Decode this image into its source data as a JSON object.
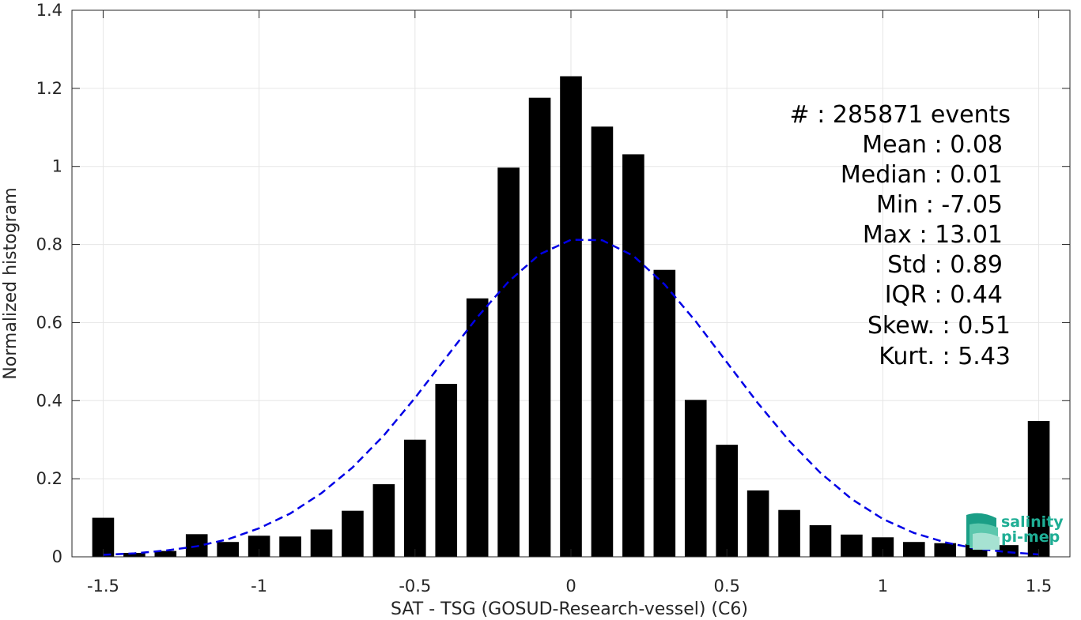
{
  "chart_data": {
    "type": "bar",
    "xlabel": "SAT - TSG (GOSUD-Research-vessel) (C6)",
    "ylabel": "Normalized histogram",
    "xlim": [
      -1.6,
      1.6
    ],
    "ylim": [
      0,
      1.4
    ],
    "xticks": [
      -1.5,
      -1,
      -0.5,
      0,
      0.5,
      1,
      1.5
    ],
    "xtick_labels": [
      "-1.5",
      "-1",
      "-0.5",
      "0",
      "0.5",
      "1",
      "1.5"
    ],
    "yticks": [
      0,
      0.2,
      0.4,
      0.6,
      0.8,
      1,
      1.2,
      1.4
    ],
    "ytick_labels": [
      "0",
      "0.2",
      "0.4",
      "0.6",
      "0.8",
      "1",
      "1.2",
      "1.4"
    ],
    "grid": true,
    "bar_color": "#000000",
    "bin_width": 0.1,
    "bins": {
      "centers": [
        -1.5,
        -1.4,
        -1.3,
        -1.2,
        -1.1,
        -1.0,
        -0.9,
        -0.8,
        -0.7,
        -0.6,
        -0.5,
        -0.4,
        -0.3,
        -0.2,
        -0.1,
        0.0,
        0.1,
        0.2,
        0.3,
        0.4,
        0.5,
        0.6,
        0.7,
        0.8,
        0.9,
        1.0,
        1.1,
        1.2,
        1.3,
        1.4,
        1.5
      ],
      "values": [
        0.1,
        0.01,
        0.015,
        0.058,
        0.038,
        0.054,
        0.052,
        0.07,
        0.118,
        0.186,
        0.3,
        0.443,
        0.662,
        0.997,
        1.176,
        1.231,
        1.102,
        1.031,
        0.735,
        0.402,
        0.287,
        0.17,
        0.12,
        0.081,
        0.057,
        0.05,
        0.038,
        0.035,
        0.033,
        0.03,
        0.348
      ]
    },
    "fit_curve": {
      "style": "dashed",
      "color": "#0000e6",
      "x": [
        -1.5,
        -1.4,
        -1.3,
        -1.2,
        -1.1,
        -1.0,
        -0.9,
        -0.8,
        -0.7,
        -0.6,
        -0.5,
        -0.4,
        -0.3,
        -0.2,
        -0.1,
        0.0,
        0.1,
        0.2,
        0.3,
        0.4,
        0.5,
        0.6,
        0.7,
        0.8,
        0.9,
        1.0,
        1.1,
        1.2,
        1.3,
        1.4,
        1.5
      ],
      "y": [
        0.005,
        0.009,
        0.016,
        0.027,
        0.045,
        0.073,
        0.111,
        0.163,
        0.229,
        0.311,
        0.407,
        0.511,
        0.614,
        0.705,
        0.775,
        0.812,
        0.811,
        0.771,
        0.698,
        0.603,
        0.498,
        0.393,
        0.297,
        0.215,
        0.148,
        0.097,
        0.061,
        0.037,
        0.021,
        0.012,
        0.006
      ]
    },
    "annotations": [
      "#  : 285871 events",
      "Mean : 0.08",
      "Median : 0.01",
      "Min : -7.05",
      "Max : 13.01",
      "Std : 0.89",
      "IQR : 0.44",
      "Skew. : 0.51",
      "Kurt. : 5.43"
    ]
  },
  "logo": {
    "line1": "salinity",
    "line2": "pi-mep"
  }
}
